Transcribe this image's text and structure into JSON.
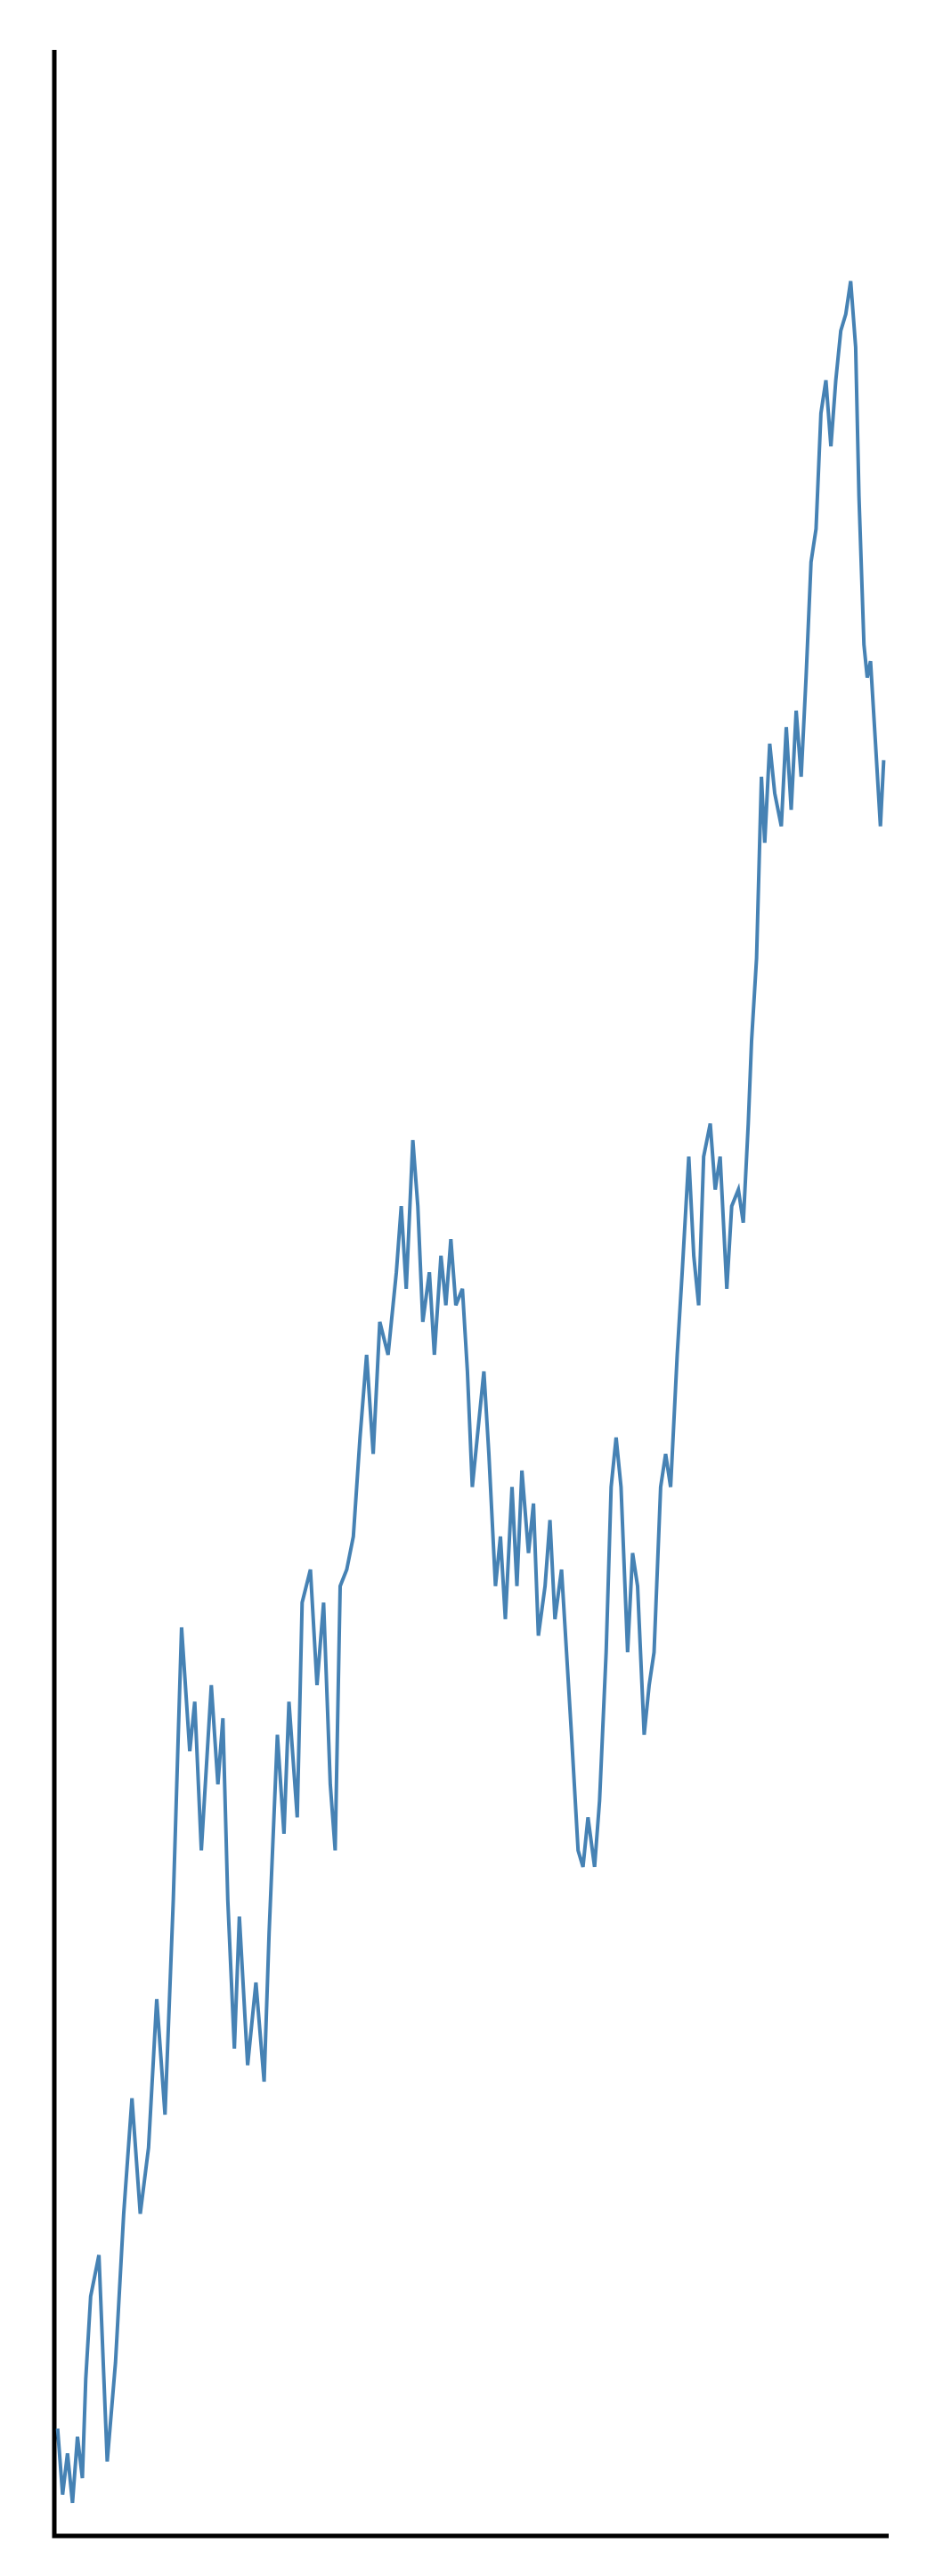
{
  "chart_data": {
    "type": "line",
    "color": "#4682b4",
    "xlim": [
      33,
      538
    ],
    "ylim": [
      0,
      1505
    ],
    "x": [
      35,
      38,
      41,
      44,
      47,
      50,
      52,
      55,
      60,
      65,
      70,
      75,
      80,
      85,
      90,
      95,
      100,
      105,
      108,
      110,
      115,
      118,
      122,
      128,
      132,
      135,
      138,
      142,
      145,
      150,
      155,
      160,
      163,
      168,
      172,
      175,
      180,
      183,
      188,
      192,
      196,
      200,
      203,
      206,
      210,
      214,
      218,
      222,
      226,
      230,
      235,
      240,
      243,
      246,
      250,
      253,
      256,
      260,
      263,
      267,
      270,
      273,
      276,
      280,
      283,
      286,
      290,
      293,
      296,
      300,
      303,
      306,
      310,
      313,
      316,
      320,
      323,
      326,
      330,
      333,
      336,
      340,
      343,
      346,
      350,
      353,
      356,
      360,
      363,
      367,
      370,
      373,
      376,
      380,
      383,
      386,
      390,
      393,
      396,
      400,
      403,
      406,
      410,
      413,
      417,
      420,
      423,
      426,
      430,
      433,
      436,
      440,
      443,
      447,
      450,
      453,
      455,
      458,
      461,
      463,
      466,
      469,
      473,
      476,
      479,
      482,
      485,
      488,
      491,
      494,
      497,
      500,
      503,
      506,
      509,
      512,
      515,
      518,
      520,
      523,
      525,
      527,
      530,
      533,
      535
    ],
    "values": [
      65,
      25,
      50,
      20,
      60,
      35,
      95,
      145,
      170,
      45,
      105,
      195,
      265,
      195,
      235,
      325,
      255,
      385,
      485,
      550,
      475,
      505,
      415,
      515,
      455,
      495,
      385,
      295,
      375,
      285,
      335,
      275,
      365,
      485,
      425,
      505,
      435,
      565,
      585,
      515,
      565,
      455,
      415,
      575,
      585,
      605,
      665,
      715,
      655,
      735,
      715,
      765,
      805,
      755,
      845,
      805,
      735,
      765,
      715,
      775,
      745,
      785,
      745,
      755,
      705,
      635,
      675,
      705,
      655,
      575,
      605,
      555,
      635,
      575,
      645,
      595,
      625,
      545,
      575,
      615,
      555,
      585,
      535,
      485,
      415,
      405,
      435,
      405,
      445,
      535,
      635,
      665,
      635,
      535,
      595,
      575,
      485,
      515,
      535,
      635,
      655,
      635,
      715,
      765,
      835,
      775,
      745,
      835,
      855,
      815,
      835,
      755,
      805,
      815,
      795,
      855,
      905,
      955,
      1065,
      1025,
      1085,
      1055,
      1035,
      1095,
      1045,
      1105,
      1065,
      1125,
      1195,
      1215,
      1285,
      1305,
      1265,
      1305,
      1335,
      1345,
      1365,
      1325,
      1235,
      1145,
      1125,
      1135,
      1085,
      1035,
      1075
    ]
  }
}
